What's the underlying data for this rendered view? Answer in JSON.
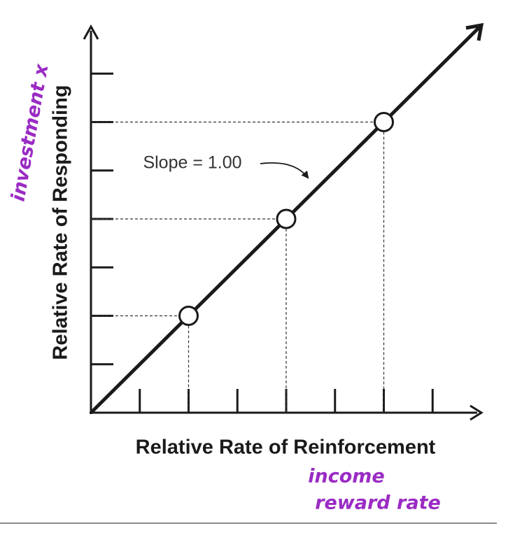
{
  "chart_data": {
    "type": "line",
    "x": [
      0,
      2,
      4,
      6,
      8
    ],
    "values": [
      0,
      2,
      4,
      6,
      8
    ],
    "markers": [
      false,
      true,
      true,
      true,
      false
    ],
    "color": "#1a1a1a",
    "xlim": [
      0,
      8
    ],
    "ylim": [
      0,
      8
    ],
    "xticks": [
      1,
      2,
      3,
      4,
      5,
      6,
      7
    ],
    "yticks": [
      1,
      2,
      3,
      4,
      5,
      6,
      7
    ],
    "xlabel": "Relative Rate of Reinforcement",
    "ylabel": "Relative Rate of Responding",
    "annotation": "Slope = 1.00",
    "handwritten": {
      "ylabel_note": "investment x",
      "xlabel_notes": [
        "income",
        "reward rate"
      ],
      "color": "#9a2bc4"
    }
  }
}
